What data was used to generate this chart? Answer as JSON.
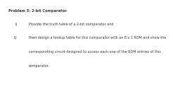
{
  "title": "Problem 5: 2-bit Comparator.",
  "line_i": "i)",
  "line_ii": "ii)",
  "text_i": "Provide the truth table of a 2-bit comparator and",
  "text_ii_line1": "then design a lookup table for this comparator with an 8 x 1 ROM and show the",
  "text_ii_line2": "corresponding circuit designed to access each one of the ROM entries of this",
  "text_ii_line3": "comparator.",
  "bg_color": "#ffffff",
  "text_color": "#3a3a3a",
  "font_size": 3.5,
  "title_font_size": 3.7
}
